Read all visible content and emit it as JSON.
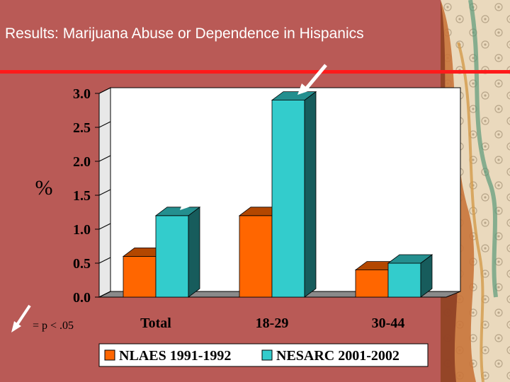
{
  "slide": {
    "title": "Results:  Marijuana Abuse or Dependence in Hispanics",
    "y_unit_symbol": "%",
    "significance_note": "= p < .05",
    "colors": {
      "background": "#b95a56",
      "rule": "#ff1a1a",
      "series_1": "#ff6600",
      "series_2": "#33cccc",
      "plot_bg": "#ffffff",
      "floor": "#7a7a7a"
    }
  },
  "chart_data": {
    "type": "bar",
    "title": "",
    "xlabel": "",
    "ylabel": "%",
    "categories": [
      "Total",
      "18-29",
      "30-44"
    ],
    "series": [
      {
        "name": "NLAES 1991-1992",
        "values": [
          0.6,
          1.2,
          0.4
        ]
      },
      {
        "name": "NESARC 2001-2002",
        "values": [
          1.2,
          2.9,
          0.5
        ]
      }
    ],
    "ylim": [
      0,
      3
    ],
    "yticks": [
      "0.0",
      "0.5",
      "1.0",
      "1.5",
      "2.0",
      "2.5",
      "3.0"
    ],
    "ytick_values": [
      0,
      0.5,
      1,
      1.5,
      2,
      2.5,
      3
    ],
    "grid": false,
    "legend": "bottom",
    "significant_bars": [
      {
        "category": "Total",
        "series": "NESARC 2001-2002"
      },
      {
        "category": "18-29",
        "series": "NESARC 2001-2002"
      }
    ]
  }
}
